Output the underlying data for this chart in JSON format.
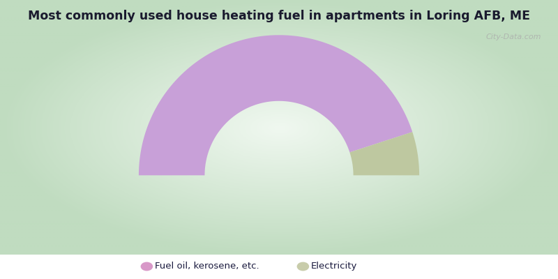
{
  "title": "Most commonly used house heating fuel in apartments in Loring AFB, ME",
  "title_fontsize": 12.5,
  "title_color": "#1a1a2e",
  "categories": [
    "Fuel oil, kerosene, etc.",
    "Electricity"
  ],
  "values": [
    90,
    10
  ],
  "colors": [
    "#c8a0d8",
    "#bec8a0"
  ],
  "legend_colors": [
    "#d898c8",
    "#c8ccaa"
  ],
  "watermark": "City-Data.com",
  "cyan_bar_height": 0.088,
  "bg_color_center": "#f0faf0",
  "bg_color_corner": "#c8e8c8"
}
